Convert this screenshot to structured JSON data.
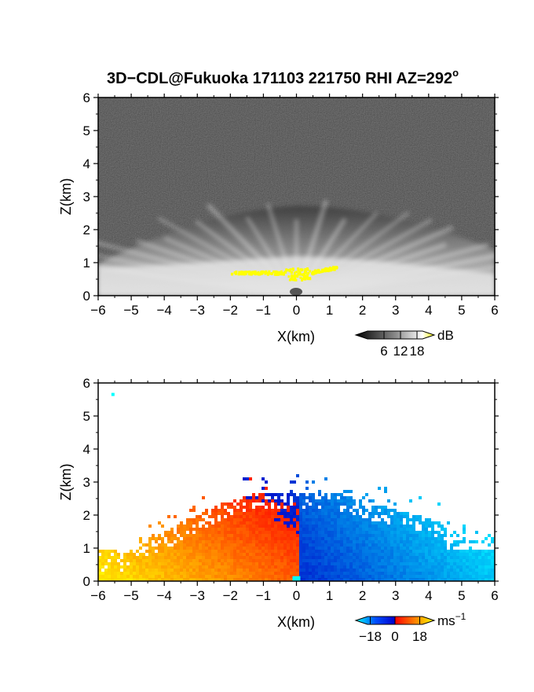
{
  "figure": {
    "title_main": "3D−CDL@Fukuoka 171103 221750 RHI AZ=292",
    "title_sup": "o"
  },
  "chart_data": [
    {
      "type": "heatmap",
      "quantity": "signal intensity",
      "xlabel": "X(km)",
      "ylabel": "Z(km)",
      "xlim": [
        -6,
        6
      ],
      "ylim": [
        0,
        6
      ],
      "x_ticks": [
        -6,
        -5,
        -4,
        -3,
        -2,
        -1,
        0,
        1,
        2,
        3,
        4,
        5,
        6
      ],
      "y_ticks": [
        0,
        1,
        2,
        3,
        4,
        5,
        6
      ],
      "colorbar": {
        "unit": "dB",
        "ticks": [
          6,
          12,
          18
        ],
        "tick_labels": [
          "6",
          "12",
          "18"
        ],
        "range": [
          0,
          20
        ],
        "colors": [
          "#000000",
          "#3a3a3a",
          "#8a8a8a",
          "#d0d0d0",
          "#ffffff",
          "#ffff00"
        ]
      },
      "features": {
        "background_noise_top_km": 6,
        "boundary_layer_top_km": 2.7,
        "bright_layer_top_km": 1.0,
        "saturated_region": {
          "x_range": [
            -2,
            1.2
          ],
          "z_range": [
            0.3,
            0.9
          ]
        }
      }
    },
    {
      "type": "heatmap",
      "quantity": "radial velocity",
      "xlabel": "X(km)",
      "ylabel": "Z(km)",
      "xlim": [
        -6,
        6
      ],
      "ylim": [
        0,
        6
      ],
      "x_ticks": [
        -6,
        -5,
        -4,
        -3,
        -2,
        -1,
        0,
        1,
        2,
        3,
        4,
        5,
        6
      ],
      "y_ticks": [
        0,
        1,
        2,
        3,
        4,
        5,
        6
      ],
      "colorbar": {
        "unit_base": "ms",
        "unit_sup": "−1",
        "ticks": [
          -18,
          0,
          18
        ],
        "tick_labels": [
          "−18",
          "0",
          "18"
        ],
        "range": [
          -20,
          20
        ],
        "colors": [
          "#00ffff",
          "#0050ff",
          "#0000cc",
          "#ff0000",
          "#ff7f00",
          "#ffff00"
        ]
      },
      "features": {
        "echo_top_km": 2.7,
        "negative_side": "x > 0",
        "positive_side": "x < 0"
      }
    }
  ]
}
